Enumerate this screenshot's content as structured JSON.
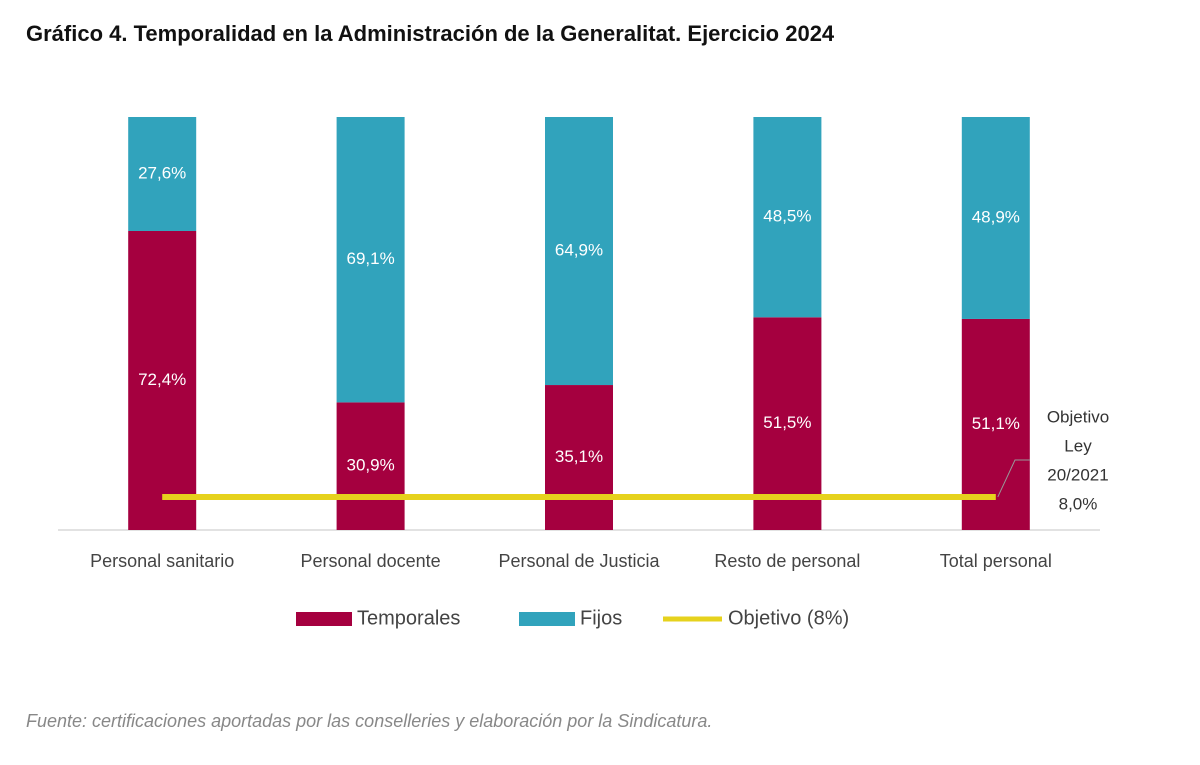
{
  "chart_data": {
    "type": "stacked-bar",
    "title": "Gráfico 4. Temporalidad en la Administración de la Generalitat. Ejercicio 2024",
    "source": "Fuente: certificaciones aportadas por las conselleries y elaboración por la Sindicatura.",
    "categories": [
      "Personal sanitario",
      "Personal docente",
      "Personal de Justicia",
      "Resto de personal",
      "Total personal"
    ],
    "ylim": [
      0,
      100
    ],
    "series": [
      {
        "name": "Temporales",
        "color": "#a5003f",
        "values": [
          72.4,
          30.9,
          35.1,
          51.5,
          51.1
        ],
        "value_labels": [
          "72,4%",
          "30,9%",
          "35,1%",
          "51,5%",
          "51,1%"
        ]
      },
      {
        "name": "Fijos",
        "color": "#31a3bc",
        "values": [
          27.6,
          69.1,
          64.9,
          48.5,
          48.9
        ],
        "value_labels": [
          "27,6%",
          "69,1%",
          "64,9%",
          "48,5%",
          "48,9%"
        ]
      },
      {
        "name": "Objetivo (8%)",
        "type": "line",
        "color": "#e6d21d",
        "values": [
          8,
          8,
          8,
          8,
          8
        ]
      }
    ],
    "annotation": {
      "text": [
        "Objetivo",
        "Ley",
        "20/2021"
      ],
      "value": 8,
      "value_label": "8,0%"
    }
  }
}
